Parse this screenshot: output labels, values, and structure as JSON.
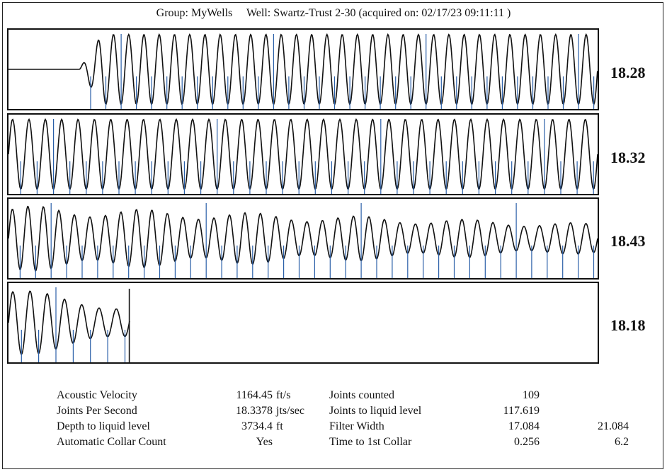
{
  "header": {
    "group_text": "Group: MyWells",
    "well_text": "Well: Swartz-Trust 2-30 (acquired on: 02/17/23 09:11:11 )"
  },
  "chart_data": {
    "type": "line",
    "title": "",
    "panels": [
      {
        "rate": "18.28",
        "start_fraction": 0.12,
        "end_fraction": 1.0,
        "cycles": 34,
        "amplitude": 0.44,
        "style": "steady"
      },
      {
        "rate": "18.32",
        "start_fraction": 0.0,
        "end_fraction": 1.0,
        "cycles": 36,
        "amplitude": 0.44,
        "style": "steady"
      },
      {
        "rate": "18.43",
        "start_fraction": 0.0,
        "end_fraction": 1.0,
        "cycles": 38,
        "amplitude": 0.42,
        "style": "decaying"
      },
      {
        "rate": "18.18",
        "start_fraction": 0.0,
        "end_fraction": 0.205,
        "cycles": 7,
        "amplitude": 0.45,
        "style": "decaying"
      }
    ],
    "colors": {
      "trace": "#111111",
      "collar_marker": "#2a5fa8"
    }
  },
  "stats": {
    "left": [
      {
        "label": "Acoustic Velocity",
        "value": "1164.45",
        "unit": "ft/s"
      },
      {
        "label": "Joints Per Second",
        "value": "18.3378",
        "unit": "jts/sec"
      },
      {
        "label": "Depth to liquid level",
        "value": "3734.4",
        "unit": "ft"
      },
      {
        "label": "Automatic Collar Count",
        "value": "Yes",
        "unit": ""
      }
    ],
    "right": [
      {
        "label": "Joints counted",
        "value": "109",
        "extra": ""
      },
      {
        "label": "Joints to liquid level",
        "value": "117.619",
        "extra": ""
      },
      {
        "label": "Filter Width",
        "value": "17.084",
        "extra": "21.084"
      },
      {
        "label": "Time to 1st Collar",
        "value": "0.256",
        "extra": "6.2"
      }
    ]
  }
}
